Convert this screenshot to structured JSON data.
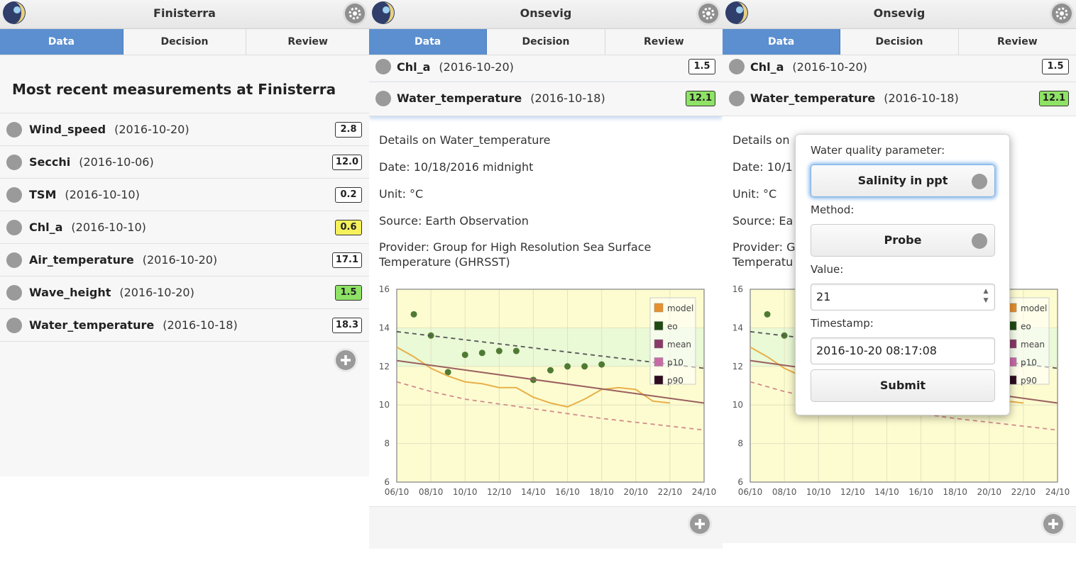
{
  "colors": {
    "tab_active": "#5b8fcf",
    "badge_yellow": "#f6f15a",
    "badge_green": "#8ee265",
    "plot_bg": "#fdfcd0",
    "band": "#eaf9d6"
  },
  "panel1": {
    "title": "Finisterra",
    "tabs": [
      "Data",
      "Decision",
      "Review"
    ],
    "heading": "Most recent measurements at Finisterra",
    "rows": [
      {
        "name": "Wind_speed",
        "date": "(2016-10-20)",
        "value": "2.8"
      },
      {
        "name": "Secchi",
        "date": "(2016-10-06)",
        "value": "12.0"
      },
      {
        "name": "TSM",
        "date": "(2016-10-10)",
        "value": "0.2"
      },
      {
        "name": "Chl_a",
        "date": "(2016-10-10)",
        "value": "0.6"
      },
      {
        "name": "Air_temperature",
        "date": "(2016-10-20)",
        "value": "17.1"
      },
      {
        "name": "Wave_height",
        "date": "(2016-10-20)",
        "value": "1.5"
      },
      {
        "name": "Water_temperature",
        "date": "(2016-10-18)",
        "value": "18.3"
      }
    ]
  },
  "panel2": {
    "title": "Onsevig",
    "tabs": [
      "Data",
      "Decision",
      "Review"
    ],
    "rows": [
      {
        "name": "Chl_a",
        "date": "(2016-10-20)",
        "value": "1.5"
      },
      {
        "name": "Water_temperature",
        "date": "(2016-10-18)",
        "value": "12.1"
      }
    ],
    "details": {
      "heading": "Details on Water_temperature",
      "date": "Date: 10/18/2016 midnight",
      "unit": "Unit: °C",
      "source": "Source: Earth Observation",
      "provider_1": "Provider: Group for High Resolution Sea Surface",
      "provider_2": "Temperature (GHRSST)"
    }
  },
  "panel3": {
    "title": "Onsevig",
    "tabs": [
      "Data",
      "Decision",
      "Review"
    ],
    "rows": [
      {
        "name": "Chl_a",
        "date": "(2016-10-20)",
        "value": "1.5"
      },
      {
        "name": "Water_temperature",
        "date": "(2016-10-18)",
        "value": "12.1"
      }
    ],
    "details_partial": {
      "heading": "Details on ",
      "date": "Date: 10/1",
      "unit": "Unit: °C",
      "source": "Source: Ea",
      "provider_1": "Provider: G",
      "provider_2": "Temperatu"
    },
    "popup": {
      "param_label": "Water quality parameter:",
      "param_value": "Salinity in ppt",
      "method_label": "Method:",
      "method_value": "Probe",
      "value_label": "Value:",
      "value": "21",
      "timestamp_label": "Timestamp:",
      "timestamp": "2016-10-20 08:17:08",
      "submit_label": "Submit"
    }
  },
  "chart_data": {
    "type": "line",
    "x_tick_labels": [
      "06/10",
      "08/10",
      "10/10",
      "12/10",
      "14/10",
      "16/10",
      "18/10",
      "20/10",
      "22/10",
      "24/10"
    ],
    "y_tick_labels": [
      "6",
      "8",
      "10",
      "12",
      "14",
      "16"
    ],
    "xlim": [
      "2016-10-06",
      "2016-10-24"
    ],
    "ylim": [
      6,
      16
    ],
    "legend_position": "top-right",
    "legend": [
      {
        "name": "model",
        "color": "#e8902c"
      },
      {
        "name": "eo",
        "color": "#1f4a12"
      },
      {
        "name": "mean",
        "color": "#8a3a66"
      },
      {
        "name": "p10",
        "color": "#c96aa8"
      },
      {
        "name": "p90",
        "color": "#2e0b1f"
      }
    ],
    "series": [
      {
        "name": "eo",
        "kind": "points",
        "color": "#4f7a33",
        "points": [
          [
            "2016-10-07",
            14.7
          ],
          [
            "2016-10-08",
            13.6
          ],
          [
            "2016-10-09",
            11.7
          ],
          [
            "2016-10-10",
            12.6
          ],
          [
            "2016-10-11",
            12.7
          ],
          [
            "2016-10-12",
            12.8
          ],
          [
            "2016-10-13",
            12.8
          ],
          [
            "2016-10-14",
            11.3
          ],
          [
            "2016-10-15",
            11.8
          ],
          [
            "2016-10-16",
            12.0
          ],
          [
            "2016-10-17",
            12.0
          ],
          [
            "2016-10-18",
            12.1
          ]
        ]
      },
      {
        "name": "model",
        "kind": "line",
        "color": "#e8b04a",
        "points": [
          [
            "2016-10-06",
            13.0
          ],
          [
            "2016-10-07",
            12.5
          ],
          [
            "2016-10-08",
            11.9
          ],
          [
            "2016-10-09",
            11.5
          ],
          [
            "2016-10-10",
            11.2
          ],
          [
            "2016-10-11",
            11.1
          ],
          [
            "2016-10-12",
            10.9
          ],
          [
            "2016-10-13",
            10.9
          ],
          [
            "2016-10-14",
            10.4
          ],
          [
            "2016-10-15",
            10.1
          ],
          [
            "2016-10-16",
            9.9
          ],
          [
            "2016-10-17",
            10.3
          ],
          [
            "2016-10-18",
            10.8
          ],
          [
            "2016-10-19",
            10.9
          ],
          [
            "2016-10-20",
            10.8
          ],
          [
            "2016-10-21",
            10.2
          ],
          [
            "2016-10-22",
            10.1
          ]
        ]
      },
      {
        "name": "mean",
        "kind": "line",
        "color": "#9a6060",
        "points": [
          [
            "2016-10-06",
            12.3
          ],
          [
            "2016-10-24",
            10.1
          ]
        ]
      },
      {
        "name": "p90",
        "kind": "dashed",
        "color": "#555555",
        "points": [
          [
            "2016-10-06",
            13.8
          ],
          [
            "2016-10-24",
            11.9
          ]
        ]
      },
      {
        "name": "p10",
        "kind": "dashed",
        "color": "#d08b8b",
        "points": [
          [
            "2016-10-06",
            11.2
          ],
          [
            "2016-10-08",
            10.7
          ],
          [
            "2016-10-10",
            10.3
          ],
          [
            "2016-10-14",
            9.8
          ],
          [
            "2016-10-18",
            9.3
          ],
          [
            "2016-10-24",
            8.7
          ]
        ]
      }
    ]
  }
}
